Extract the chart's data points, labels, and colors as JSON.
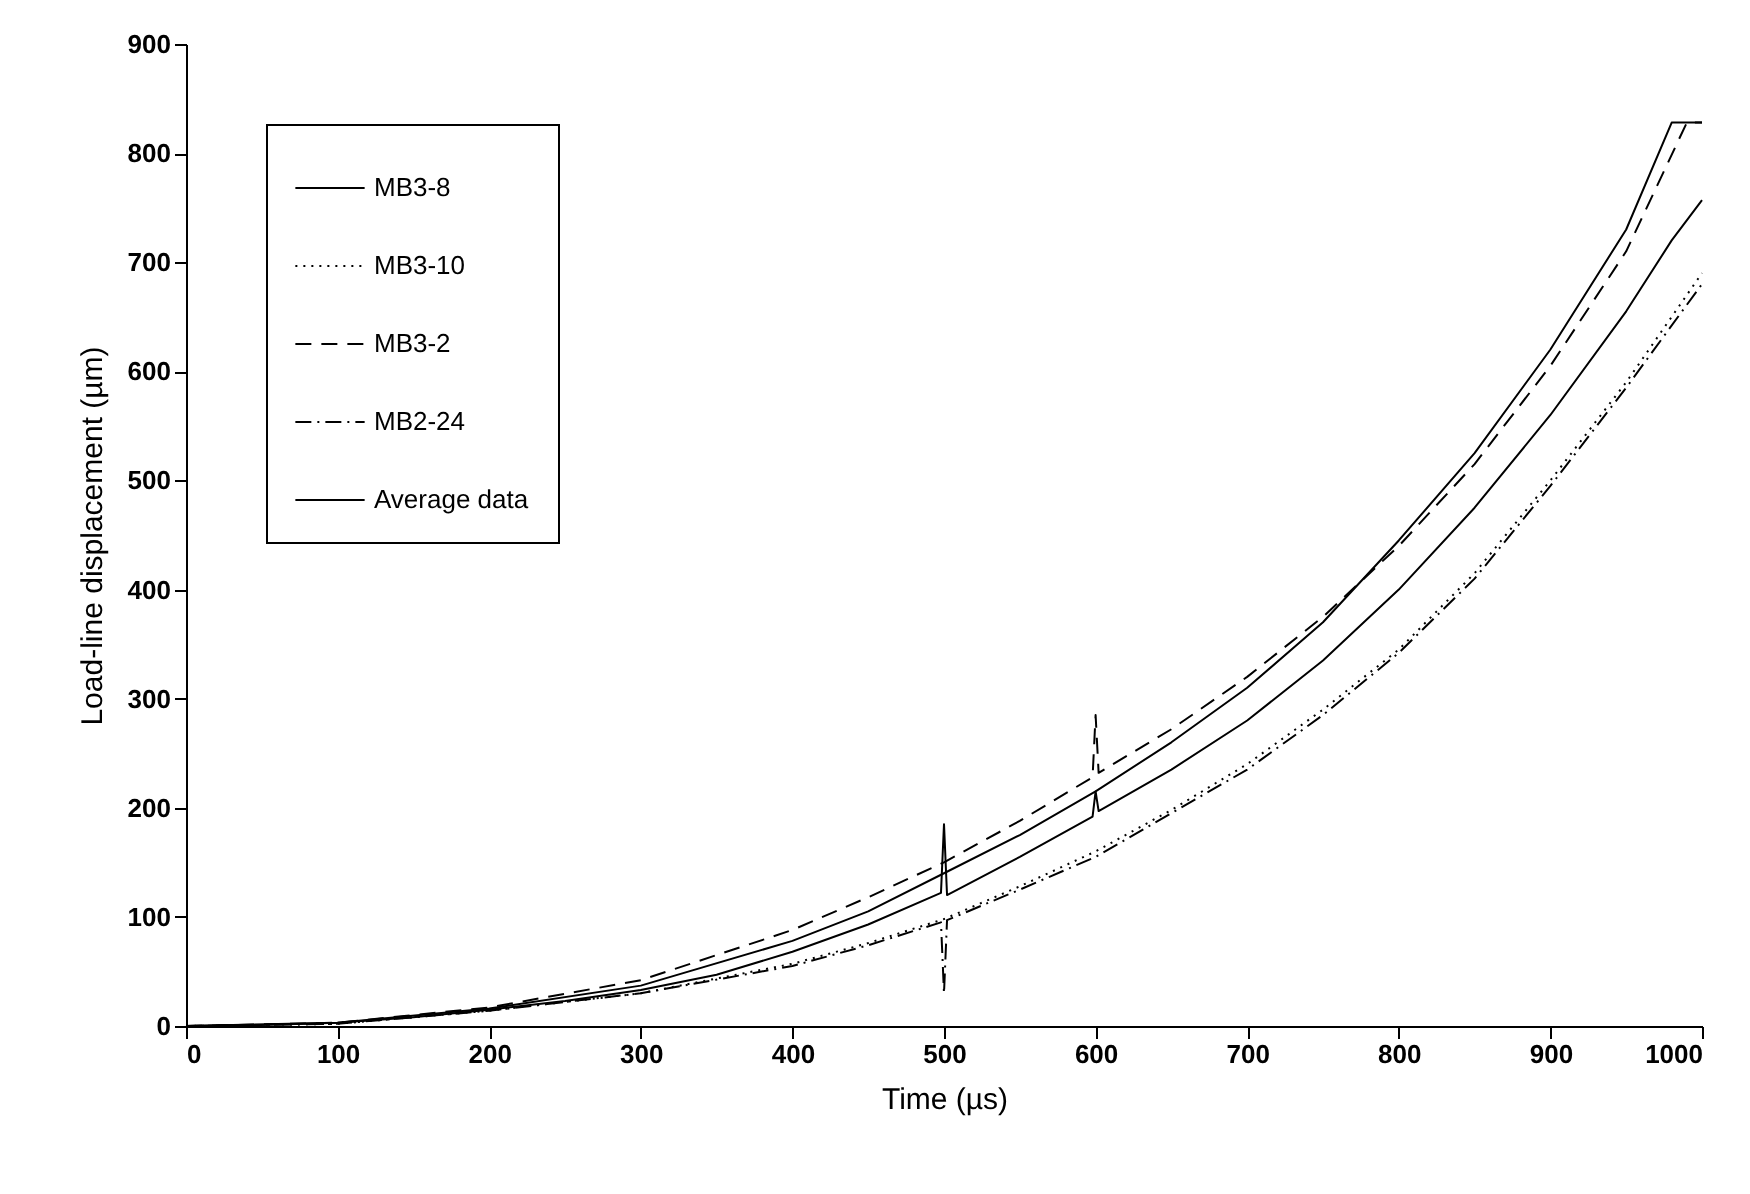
{
  "chart_data": {
    "type": "line",
    "xlabel": "Time (µs)",
    "ylabel": "Load-line displacement (µm)",
    "xlim": [
      0,
      1000
    ],
    "ylim": [
      0,
      900
    ],
    "xticks": [
      0,
      100,
      200,
      300,
      400,
      500,
      600,
      700,
      800,
      900,
      1000
    ],
    "yticks": [
      0,
      100,
      200,
      300,
      400,
      500,
      600,
      700,
      800,
      900
    ],
    "grid": false,
    "legend": "top left",
    "marker": "none",
    "series": [
      {
        "name": "MB3-8",
        "color": "#000000",
        "line_style": "solid",
        "x": [
          0,
          100,
          200,
          300,
          400,
          450,
          500,
          550,
          600,
          650,
          700,
          750,
          800,
          850,
          900,
          950,
          980,
          1000
        ],
        "values": [
          0,
          3,
          16,
          37,
          78,
          105,
          140,
          175,
          215,
          260,
          310,
          370,
          445,
          525,
          620,
          730,
          828,
          828
        ]
      },
      {
        "name": "MB3-10",
        "color": "#000000",
        "line_style": "dotted",
        "x": [
          0,
          100,
          200,
          300,
          400,
          450,
          500,
          550,
          600,
          650,
          700,
          750,
          800,
          850,
          900,
          950,
          1000
        ],
        "values": [
          0,
          2,
          14,
          30,
          57,
          76,
          98,
          128,
          160,
          198,
          240,
          290,
          345,
          415,
          500,
          590,
          690
        ]
      },
      {
        "name": "MB3-2",
        "color": "#000000",
        "line_style": "dashed",
        "x": [
          0,
          100,
          200,
          300,
          400,
          450,
          500,
          550,
          598,
          600,
          602,
          650,
          700,
          750,
          800,
          850,
          900,
          950,
          990,
          1000
        ],
        "values": [
          0,
          3,
          17,
          42,
          88,
          118,
          150,
          188,
          228,
          285,
          232,
          272,
          320,
          375,
          440,
          515,
          605,
          710,
          828,
          828
        ]
      },
      {
        "name": "MB2-24",
        "color": "#000000",
        "line_style": "dashdot",
        "x": [
          0,
          100,
          200,
          300,
          400,
          450,
          498,
          500,
          502,
          550,
          600,
          650,
          700,
          750,
          800,
          850,
          900,
          950,
          1000
        ],
        "values": [
          0,
          2,
          14,
          30,
          55,
          74,
          95,
          30,
          97,
          125,
          155,
          195,
          235,
          285,
          342,
          410,
          495,
          585,
          680
        ]
      },
      {
        "name": "Average data",
        "color": "#000000",
        "line_style": "solid",
        "x": [
          0,
          50,
          100,
          150,
          200,
          250,
          300,
          350,
          400,
          450,
          498,
          500,
          502,
          550,
          598,
          600,
          602,
          650,
          700,
          750,
          800,
          850,
          900,
          950,
          980,
          1000
        ],
        "values": [
          0,
          1,
          3,
          8,
          15,
          23,
          33,
          47,
          68,
          93,
          122,
          185,
          120,
          155,
          192,
          215,
          197,
          235,
          280,
          335,
          400,
          475,
          560,
          655,
          720,
          757
        ]
      }
    ]
  }
}
